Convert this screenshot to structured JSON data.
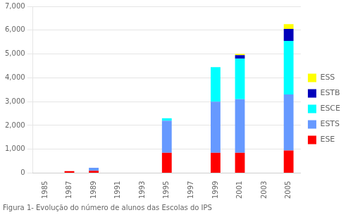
{
  "chart_data": {
    "type": "bar",
    "stacked": true,
    "caption": "Figura 1- Evolução do número de alunos das Escolas do IPS",
    "categories": [
      "1985",
      "1987",
      "1989",
      "1991",
      "1993",
      "1995",
      "1997",
      "1999",
      "2001",
      "2003",
      "2005"
    ],
    "series": [
      {
        "name": "ESE",
        "color": "#ff0000",
        "values": [
          0,
          80,
          100,
          0,
          0,
          850,
          0,
          850,
          850,
          0,
          950
        ]
      },
      {
        "name": "ESTS",
        "color": "#6699ff",
        "values": [
          0,
          0,
          120,
          0,
          0,
          1350,
          0,
          2150,
          2250,
          0,
          2350
        ]
      },
      {
        "name": "ESCE",
        "color": "#00ffff",
        "values": [
          0,
          0,
          0,
          0,
          0,
          100,
          0,
          1450,
          1700,
          0,
          2250
        ]
      },
      {
        "name": "ESTB",
        "color": "#0000bb",
        "values": [
          0,
          0,
          0,
          0,
          0,
          0,
          0,
          0,
          150,
          0,
          500
        ]
      },
      {
        "name": "ESS",
        "color": "#ffff00",
        "values": [
          0,
          0,
          0,
          0,
          0,
          0,
          0,
          0,
          50,
          0,
          200
        ]
      }
    ],
    "ylim": [
      0,
      7000
    ],
    "yticks": [
      0,
      1000,
      2000,
      3000,
      4000,
      5000,
      6000,
      7000
    ],
    "grid": true,
    "legend": "right"
  }
}
